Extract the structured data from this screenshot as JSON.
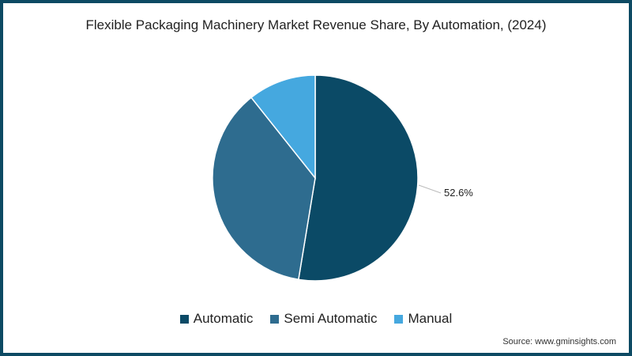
{
  "chart_data": {
    "type": "pie",
    "title": "Flexible Packaging Machinery Market Revenue Share, By Automation, (2024)",
    "categories": [
      "Automatic",
      "Semi Automatic",
      "Manual"
    ],
    "values": [
      52.6,
      36.7,
      10.7
    ],
    "colors": [
      "#0b4a66",
      "#2e6c8f",
      "#45a8df"
    ],
    "data_labels": [
      {
        "category": "Automatic",
        "text": "52.6%"
      }
    ],
    "legend_position": "bottom",
    "source": "Source: www.gminsights.com"
  },
  "header": {
    "title": "Flexible Packaging Machinery Market Revenue Share, By Automation, (2024)"
  },
  "legend": {
    "items": [
      {
        "label": "Automatic",
        "color": "#0b4a66"
      },
      {
        "label": "Semi Automatic",
        "color": "#2e6c8f"
      },
      {
        "label": "Manual",
        "color": "#45a8df"
      }
    ]
  },
  "annotation": {
    "label": "52.6%"
  },
  "footer": {
    "source": "Source: www.gminsights.com"
  },
  "theme": {
    "border": "#0d4a63"
  }
}
